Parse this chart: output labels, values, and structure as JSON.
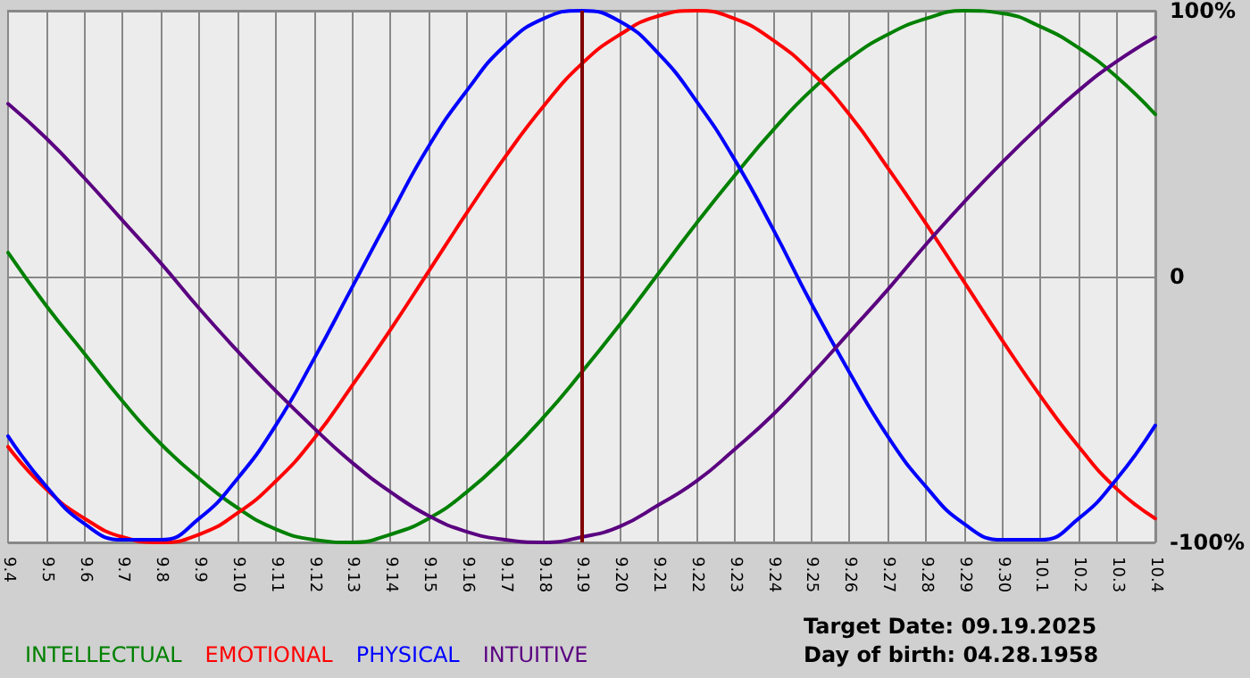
{
  "chart_data": {
    "type": "line",
    "categories": [
      "9.4",
      "9.5",
      "9.6",
      "9.7",
      "9.8",
      "9.9",
      "9.10",
      "9.11",
      "9.12",
      "9.13",
      "9.14",
      "9.15",
      "9.16",
      "9.17",
      "9.18",
      "9.19",
      "9.20",
      "9.21",
      "9.22",
      "9.23",
      "9.24",
      "9.25",
      "9.26",
      "9.27",
      "9.28",
      "9.29",
      "9.30",
      "10.1",
      "10.2",
      "10.3",
      "10.4"
    ],
    "series": [
      {
        "name": "INTELLECTUAL",
        "color": "#008000",
        "values": [
          9,
          -11,
          -29,
          -47,
          -63,
          -76,
          -87,
          -95,
          -99,
          -100,
          -97,
          -91,
          -81,
          -68,
          -53,
          -36,
          -18,
          1,
          20,
          38,
          55,
          70,
          82,
          91,
          97,
          100,
          99,
          94,
          86,
          75,
          61
        ]
      },
      {
        "name": "EMOTIONAL",
        "color": "#ff0000",
        "values": [
          -64,
          -80,
          -91,
          -98,
          -100,
          -97,
          -89,
          -77,
          -61,
          -41,
          -20,
          2,
          24,
          45,
          64,
          80,
          91,
          98,
          100,
          97,
          89,
          77,
          61,
          41,
          20,
          -2,
          -24,
          -45,
          -64,
          -80,
          -91
        ]
      },
      {
        "name": "PHYSICAL",
        "color": "#0000ff",
        "values": [
          -60,
          -79,
          -93,
          -99,
          -99,
          -91,
          -76,
          -56,
          -31,
          -4,
          23,
          49,
          70,
          87,
          97,
          100,
          96,
          84,
          66,
          44,
          18,
          -10,
          -36,
          -60,
          -79,
          -93,
          -99,
          -99,
          -91,
          -76,
          -56
        ]
      },
      {
        "name": "INTUITIVE",
        "color": "#5a0080",
        "values": [
          65,
          52,
          37,
          21,
          5,
          -12,
          -28,
          -43,
          -57,
          -70,
          -81,
          -90,
          -96,
          -99,
          -100,
          -98,
          -94,
          -86,
          -77,
          -65,
          -52,
          -37,
          -21,
          -5,
          12,
          28,
          43,
          57,
          70,
          81,
          90
        ]
      }
    ],
    "ylim": [
      -100,
      100
    ],
    "yticks": [
      {
        "value": 100,
        "label": "100%"
      },
      0,
      {
        "value": -100,
        "label": "-100%"
      }
    ],
    "ref_lines": [
      {
        "axis": "x",
        "value": "9.19",
        "color": "#800000"
      }
    ],
    "annotations": [
      "Target Date: 09.19.2025",
      "Day of birth: 04.28.1958"
    ],
    "grid": true,
    "legend": "bottom left",
    "marker": "none",
    "line_style": "solid"
  }
}
